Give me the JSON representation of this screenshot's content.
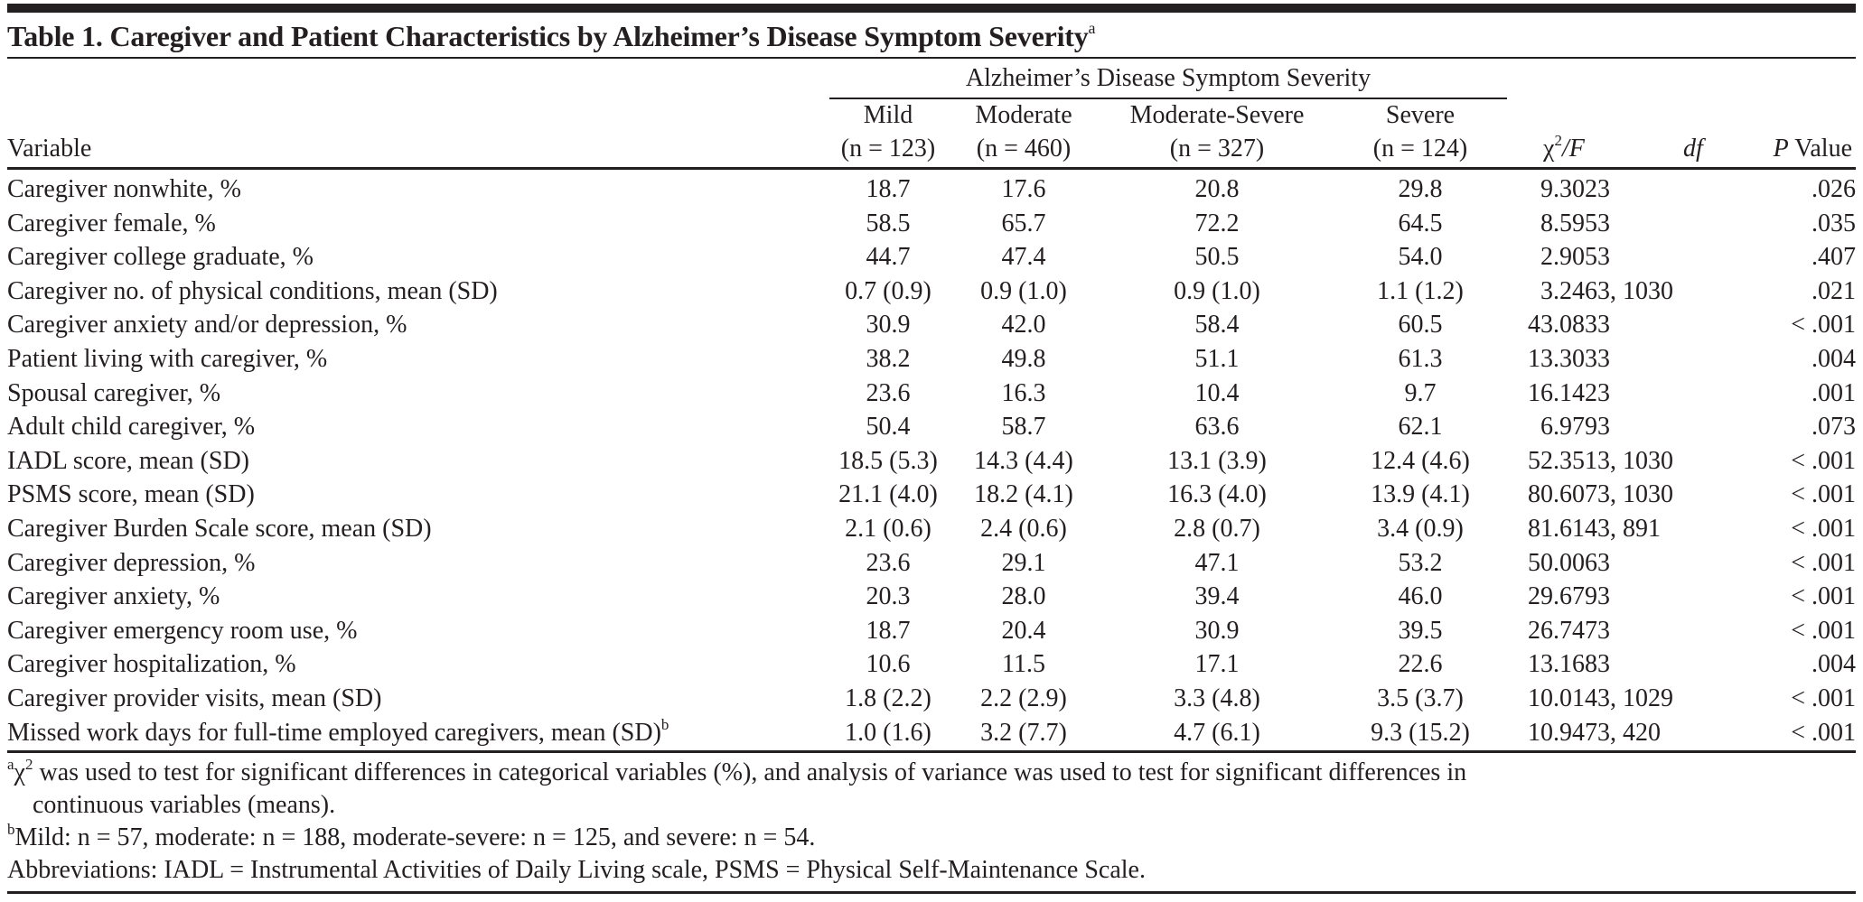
{
  "table": {
    "title": "Table 1. Caregiver and Patient Characteristics by Alzheimer’s Disease Symptom Severity",
    "title_footnote_marker": "a",
    "spanner_header": "Alzheimer’s Disease Symptom Severity",
    "columns": {
      "variable": "Variable",
      "groups": [
        {
          "label": "Mild",
          "n": "(n = 123)"
        },
        {
          "label": "Moderate",
          "n": "(n = 460)"
        },
        {
          "label": "Moderate-Severe",
          "n": "(n = 327)"
        },
        {
          "label": "Severe",
          "n": "(n = 124)"
        }
      ],
      "chi_f_prefix": "χ",
      "chi_f_sup": "2",
      "chi_f_suffix": "/F",
      "df": "df",
      "p_value_italic": "P",
      "p_value_rest": " Value"
    },
    "rows": [
      {
        "variable": "Caregiver nonwhite, %",
        "mild": "18.7",
        "moderate": "17.6",
        "moderate_severe": "20.8",
        "severe": "29.8",
        "chi_f": "9.302",
        "df": "3",
        "p": ".026"
      },
      {
        "variable": "Caregiver female, %",
        "mild": "58.5",
        "moderate": "65.7",
        "moderate_severe": "72.2",
        "severe": "64.5",
        "chi_f": "8.595",
        "df": "3",
        "p": ".035"
      },
      {
        "variable": "Caregiver college graduate, %",
        "mild": "44.7",
        "moderate": "47.4",
        "moderate_severe": "50.5",
        "severe": "54.0",
        "chi_f": "2.905",
        "df": "3",
        "p": ".407"
      },
      {
        "variable": "Caregiver no. of physical conditions, mean (SD)",
        "mild": "0.7 (0.9)",
        "moderate": "0.9 (1.0)",
        "moderate_severe": "0.9 (1.0)",
        "severe": "1.1 (1.2)",
        "chi_f": "3.246",
        "df": "3, 1030",
        "p": ".021"
      },
      {
        "variable": "Caregiver anxiety and/or depression, %",
        "mild": "30.9",
        "moderate": "42.0",
        "moderate_severe": "58.4",
        "severe": "60.5",
        "chi_f": "43.083",
        "df": "3",
        "p": "< .001"
      },
      {
        "variable": "Patient living with caregiver, %",
        "mild": "38.2",
        "moderate": "49.8",
        "moderate_severe": "51.1",
        "severe": "61.3",
        "chi_f": "13.303",
        "df": "3",
        "p": ".004"
      },
      {
        "variable": "Spousal caregiver, %",
        "mild": "23.6",
        "moderate": "16.3",
        "moderate_severe": "10.4",
        "severe": "9.7",
        "chi_f": "16.142",
        "df": "3",
        "p": ".001"
      },
      {
        "variable": "Adult child caregiver, %",
        "mild": "50.4",
        "moderate": "58.7",
        "moderate_severe": "63.6",
        "severe": "62.1",
        "chi_f": "6.979",
        "df": "3",
        "p": ".073"
      },
      {
        "variable": "IADL score, mean (SD)",
        "mild": "18.5 (5.3)",
        "moderate": "14.3 (4.4)",
        "moderate_severe": "13.1 (3.9)",
        "severe": "12.4 (4.6)",
        "chi_f": "52.351",
        "df": "3, 1030",
        "p": "< .001"
      },
      {
        "variable": "PSMS score, mean (SD)",
        "mild": "21.1 (4.0)",
        "moderate": "18.2 (4.1)",
        "moderate_severe": "16.3 (4.0)",
        "severe": "13.9 (4.1)",
        "chi_f": "80.607",
        "df": "3, 1030",
        "p": "< .001"
      },
      {
        "variable": "Caregiver Burden Scale score, mean (SD)",
        "mild": "2.1 (0.6)",
        "moderate": "2.4 (0.6)",
        "moderate_severe": "2.8 (0.7)",
        "severe": "3.4 (0.9)",
        "chi_f": "81.614",
        "df": "3, 891",
        "p": "< .001"
      },
      {
        "variable": "Caregiver depression, %",
        "mild": "23.6",
        "moderate": "29.1",
        "moderate_severe": "47.1",
        "severe": "53.2",
        "chi_f": "50.006",
        "df": "3",
        "p": "< .001"
      },
      {
        "variable": "Caregiver anxiety, %",
        "mild": "20.3",
        "moderate": "28.0",
        "moderate_severe": "39.4",
        "severe": "46.0",
        "chi_f": "29.679",
        "df": "3",
        "p": "< .001"
      },
      {
        "variable": "Caregiver emergency room use, %",
        "mild": "18.7",
        "moderate": "20.4",
        "moderate_severe": "30.9",
        "severe": "39.5",
        "chi_f": "26.747",
        "df": "3",
        "p": "< .001"
      },
      {
        "variable": "Caregiver hospitalization, %",
        "mild": "10.6",
        "moderate": "11.5",
        "moderate_severe": "17.1",
        "severe": "22.6",
        "chi_f": "13.168",
        "df": "3",
        "p": ".004"
      },
      {
        "variable": "Caregiver provider visits, mean (SD)",
        "mild": "1.8 (2.2)",
        "moderate": "2.2 (2.9)",
        "moderate_severe": "3.3 (4.8)",
        "severe": "3.5 (3.7)",
        "chi_f": "10.014",
        "df": "3, 1029",
        "p": "< .001"
      },
      {
        "variable": "Missed work days for full-time employed caregivers, mean (SD)",
        "variable_sup": "b",
        "mild": "1.0 (1.6)",
        "moderate": "3.2 (7.7)",
        "moderate_severe": "4.7 (6.1)",
        "severe": "9.3 (15.2)",
        "chi_f": "10.947",
        "df": "3, 420",
        "p": "< .001"
      }
    ],
    "footnotes": {
      "a_marker": "a",
      "a_symbol": "χ",
      "a_symbol_sup": "2",
      "a_line1": " was used to test for significant differences in categorical variables (%), and analysis of variance was used to test for significant differences in",
      "a_line2": "continuous variables (means).",
      "b_marker": "b",
      "b_text": "Mild: n = 57, moderate: n = 188, moderate-severe: n = 125, and severe: n = 54.",
      "abbreviations": "Abbreviations: IADL = Instrumental Activities of Daily Living scale, PSMS = Physical Self-Maintenance Scale."
    }
  }
}
